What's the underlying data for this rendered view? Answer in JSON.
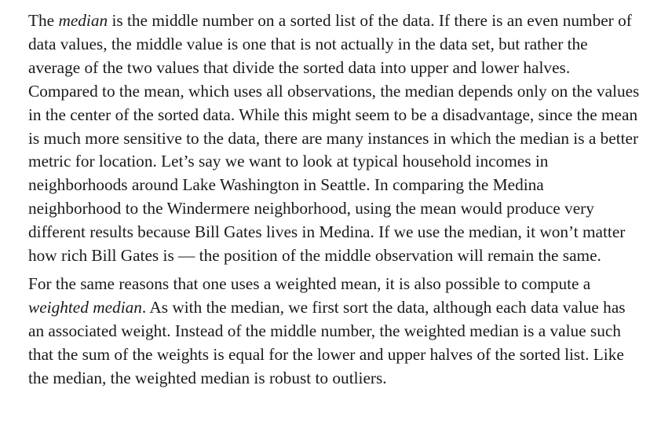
{
  "paragraph1": {
    "s1_prefix": "The ",
    "s1_term": "median",
    "s1_rest": " is the middle number on a sorted list of the data. If there is an even number of data values, the middle value is one that is not actually in the data set, but rather the average of the two values that divide the sorted data into upper and lower halves. Compared to the mean, which uses all observations, the median depends only on the values in the center of the sorted data. While this might seem to be a disadvantage, since the mean is much more sensitive to the data, there are many instances in which the median is a better metric for location. Let’s say we want to look at typical household incomes in neighborhoods around Lake Washington in Seattle. In comparing the Medina neighborhood to the Windermere neighborhood, using the mean would produce very different results because Bill Gates lives in Medina. If we use the median, it won’t matter how rich Bill Gates is — the position of the middle observation will remain the same."
  },
  "paragraph2": {
    "s1_prefix": "For the same reasons that one uses a weighted mean, it is also possible to compute a ",
    "s1_term": "weighted median",
    "s1_rest": ". As with the median, we first sort the data, although each data value has an associated weight. Instead of the middle number, the weighted median is a value such that the sum of the weights is equal for the lower and upper halves of the sorted list. Like the median, the weighted median is robust to outliers."
  }
}
